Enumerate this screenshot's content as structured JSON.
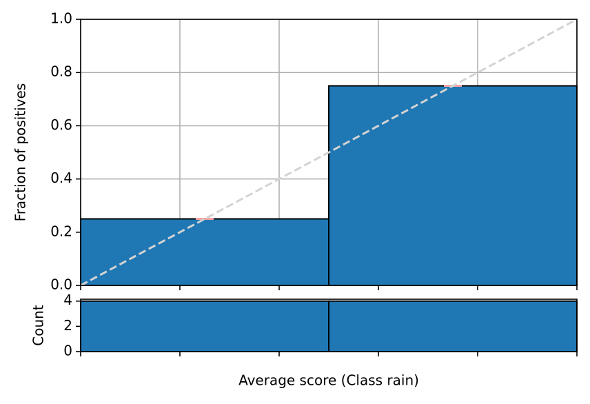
{
  "chart_data": [
    {
      "type": "histogram",
      "ylabel": "Fraction of positives",
      "bins": [
        0,
        0.5,
        1
      ],
      "values": [
        0.25,
        0.75
      ],
      "color": "#1f77b4",
      "edgecolor": "#000000",
      "xlim": [
        0,
        1
      ],
      "xticks": [
        0,
        0.2,
        0.4,
        0.6,
        0.8,
        1.0
      ],
      "ylim": [
        0,
        1
      ],
      "yticks": [
        {
          "value": 0,
          "label": "0.0"
        },
        0.2,
        0.4,
        0.6,
        0.8,
        {
          "value": 1,
          "label": "1.0"
        }
      ],
      "grid": true,
      "mean_scores": {
        "x": [
          0.25,
          0.75
        ],
        "y": [
          0.25,
          0.75
        ],
        "color": "#f4a3a3"
      },
      "reference_line": {
        "x": [
          0,
          1
        ],
        "y": [
          0,
          1
        ],
        "color": "#d3d3d3"
      }
    },
    {
      "type": "histogram",
      "ylabel": "Count",
      "xlabel": "Average score (Class rain)",
      "bins": [
        0,
        0.5,
        1
      ],
      "values": [
        4,
        4
      ],
      "color": "#1f77b4",
      "edgecolor": "#000000",
      "xlim": [
        0,
        1
      ],
      "xticks": [
        0,
        0.2,
        0.4,
        0.6,
        0.8,
        1.0
      ],
      "ylim": [
        0,
        4.15
      ],
      "yticks": [
        0,
        2,
        4
      ],
      "grid": false
    }
  ]
}
